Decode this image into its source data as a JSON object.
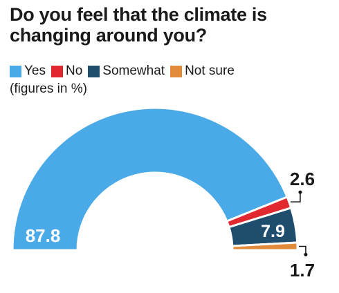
{
  "title": "Do you feel that the climate is changing around you?",
  "note": "(figures in %)",
  "chart_data": {
    "type": "semi-donut",
    "title": "Do you feel that the climate is changing around you?",
    "subtitle": "(figures in %)",
    "legend_placement": "top-left",
    "series": [
      {
        "name": "Yes",
        "value": 87.8,
        "color": "#4aaae8"
      },
      {
        "name": "No",
        "value": 2.6,
        "color": "#e0282e"
      },
      {
        "name": "Somewhat",
        "value": 7.9,
        "color": "#1e4d6e"
      },
      {
        "name": "Not sure",
        "value": 1.7,
        "color": "#e08a3a"
      }
    ],
    "data_labels": [
      "87.8",
      "2.6",
      "7.9",
      "1.7"
    ]
  }
}
